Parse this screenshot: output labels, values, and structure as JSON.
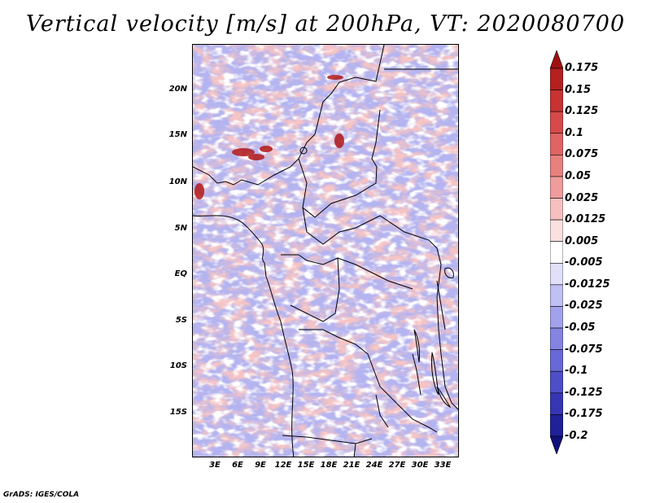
{
  "title": "Vertical velocity [m/s] at 200hPa, VT: 2020080700",
  "map": {
    "lat_range": [
      -20,
      24
    ],
    "lon_range": [
      0,
      35
    ],
    "lat_labels": [
      "20N",
      "15N",
      "10N",
      "5N",
      "EQ",
      "5S",
      "10S",
      "15S"
    ],
    "lat_values": [
      20,
      15,
      10,
      5,
      0,
      -5,
      -10,
      -15
    ],
    "lon_labels": [
      "3E",
      "6E",
      "9E",
      "12E",
      "15E",
      "18E",
      "21E",
      "24E",
      "27E",
      "30E",
      "33E"
    ],
    "lon_values": [
      3,
      6,
      9,
      12,
      15,
      18,
      21,
      24,
      27,
      30,
      33
    ]
  },
  "colorbar": {
    "levels": [
      "0.175",
      "0.15",
      "0.125",
      "0.1",
      "0.075",
      "0.05",
      "0.025",
      "0.0125",
      "0.005",
      "-0.005",
      "-0.0125",
      "-0.025",
      "-0.05",
      "-0.075",
      "-0.1",
      "-0.125",
      "-0.175",
      "-0.2"
    ],
    "colors": [
      "#a01010",
      "#b52020",
      "#c83232",
      "#d84a4a",
      "#e06464",
      "#e88080",
      "#f09c9c",
      "#f7c0c0",
      "#fbe0e0",
      "#ffffff",
      "#e0e0fb",
      "#c0c0f4",
      "#a2a2ec",
      "#8484e2",
      "#6868d6",
      "#4e4ec8",
      "#3636b4",
      "#202098",
      "#10107a"
    ]
  },
  "footer": "GrADS: IGES/COLA"
}
